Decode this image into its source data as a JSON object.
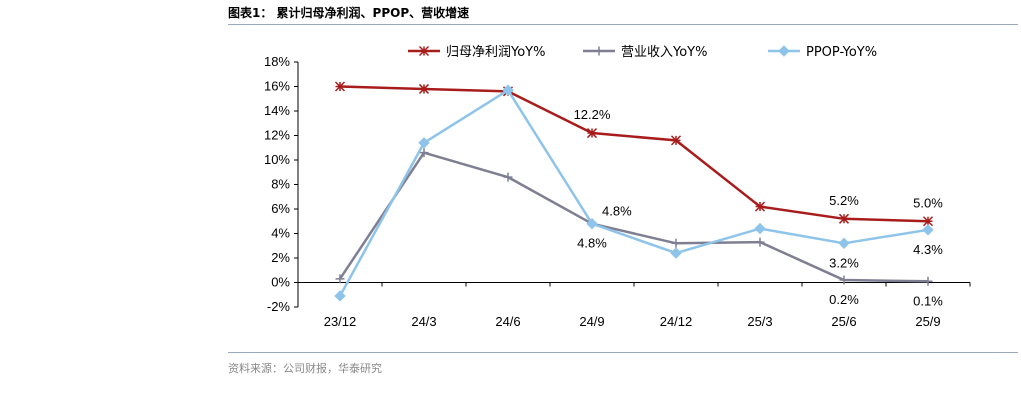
{
  "header": {
    "title": "图表1： 累计归母净利润、PPOP、营收增速"
  },
  "footer": {
    "source": "资料来源：公司财报，华泰研究"
  },
  "chart_data": {
    "type": "line",
    "categories": [
      "23/12",
      "24/3",
      "24/6",
      "24/9",
      "24/12",
      "25/3",
      "25/6",
      "25/9"
    ],
    "ylim": [
      -2,
      18
    ],
    "yticks": [
      -2,
      0,
      2,
      4,
      6,
      8,
      10,
      12,
      14,
      16,
      18
    ],
    "ytick_labels": [
      "-2%",
      "0%",
      "2%",
      "4%",
      "6%",
      "8%",
      "10%",
      "12%",
      "14%",
      "16%",
      "18%"
    ],
    "legend_position": "top",
    "series": [
      {
        "name": "归母净利润YoY%",
        "color": "#a81c1c",
        "marker": "asterisk",
        "values": [
          16.0,
          15.8,
          15.6,
          12.2,
          11.6,
          6.2,
          5.2,
          5.0
        ]
      },
      {
        "name": "营业收入YoY%",
        "color": "#7f7f93",
        "marker": "plus",
        "values": [
          0.3,
          10.6,
          8.6,
          4.8,
          3.2,
          3.3,
          0.2,
          0.1
        ]
      },
      {
        "name": "PPOP-YoY%",
        "color": "#8ec4ea",
        "marker": "diamond",
        "values": [
          -1.1,
          11.4,
          15.7,
          4.8,
          2.4,
          4.4,
          3.2,
          4.3
        ]
      }
    ],
    "data_labels": [
      {
        "series": 0,
        "index": 3,
        "text": "12.2%",
        "pos": "above"
      },
      {
        "series": 0,
        "index": 6,
        "text": "5.2%",
        "pos": "above"
      },
      {
        "series": 0,
        "index": 7,
        "text": "5.0%",
        "pos": "above"
      },
      {
        "series": 1,
        "index": 3,
        "text": "4.8%",
        "pos": "above-right"
      },
      {
        "series": 2,
        "index": 3,
        "text": "4.8%",
        "pos": "below"
      },
      {
        "series": 2,
        "index": 6,
        "text": "3.2%",
        "pos": "below"
      },
      {
        "series": 2,
        "index": 7,
        "text": "4.3%",
        "pos": "below"
      },
      {
        "series": 1,
        "index": 6,
        "text": "0.2%",
        "pos": "below"
      },
      {
        "series": 1,
        "index": 7,
        "text": "0.1%",
        "pos": "below"
      }
    ]
  }
}
